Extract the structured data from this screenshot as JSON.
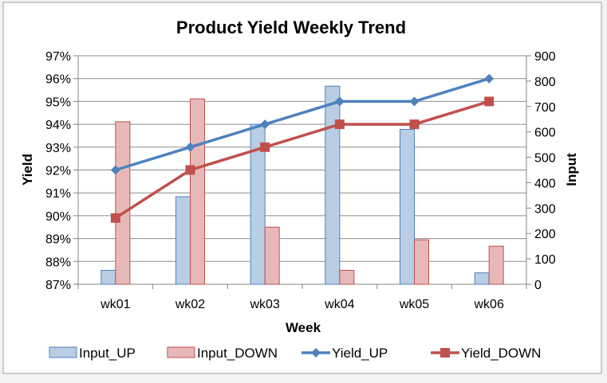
{
  "chart_data": {
    "type": "bar",
    "title": "Product Yield Weekly Trend",
    "xlabel": "Week",
    "ylabel": "Yield",
    "y2label": "Input",
    "categories": [
      "wk01",
      "wk02",
      "wk03",
      "wk04",
      "wk05",
      "wk06"
    ],
    "ylim": [
      87,
      97
    ],
    "yticks": [
      "87%",
      "88%",
      "89%",
      "90%",
      "91%",
      "92%",
      "93%",
      "94%",
      "95%",
      "96%",
      "97%"
    ],
    "y2lim": [
      0,
      900
    ],
    "y2ticks": [
      "0",
      "100",
      "200",
      "300",
      "400",
      "500",
      "600",
      "700",
      "800",
      "900"
    ],
    "grid": true,
    "legend_position": "bottom",
    "series": [
      {
        "name": "Input_UP",
        "type": "bar",
        "axis": "right",
        "values": [
          55,
          345,
          630,
          780,
          610,
          45
        ],
        "fill": "#b9cde5",
        "stroke": "#4f81bd"
      },
      {
        "name": "Input_DOWN",
        "type": "bar",
        "axis": "right",
        "values": [
          640,
          730,
          225,
          55,
          175,
          150
        ],
        "fill": "#e6b9b8",
        "stroke": "#c0504d"
      },
      {
        "name": "Yield_UP",
        "type": "line",
        "axis": "left",
        "marker": "diamond",
        "values": [
          92,
          93,
          94,
          95,
          95,
          96
        ],
        "color": "#4f81bd"
      },
      {
        "name": "Yield_DOWN",
        "type": "line",
        "axis": "left",
        "marker": "square",
        "values": [
          89.9,
          92,
          93,
          94,
          94,
          95
        ],
        "color": "#c0504d"
      }
    ]
  }
}
